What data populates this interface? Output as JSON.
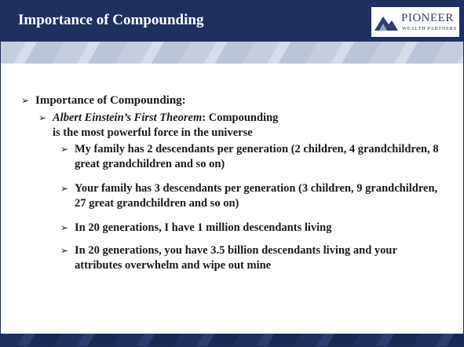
{
  "header": {
    "title": "Importance of Compounding",
    "logo": {
      "name": "PIONEER",
      "tagline": "WEALTH PARTNERS"
    }
  },
  "bullets": {
    "heading": "Importance of Compounding:",
    "theorem": {
      "emphasis": "Albert Einstein’s First Theorem",
      "text": ": Compounding is the most powerful force in the universe"
    },
    "points": [
      "My family has 2 descendants per generation (2 children, 4 grandchildren, 8 great grandchildren and so on)",
      "Your family has 3 descendants per generation (3 children, 9 grandchildren, 27 great grandchildren and so on)",
      "In 20 generations, I have 1 million descendants living",
      "In 20 generations, you have 3.5 billion descendants living and your attributes overwhelm and wipe out mine"
    ]
  }
}
